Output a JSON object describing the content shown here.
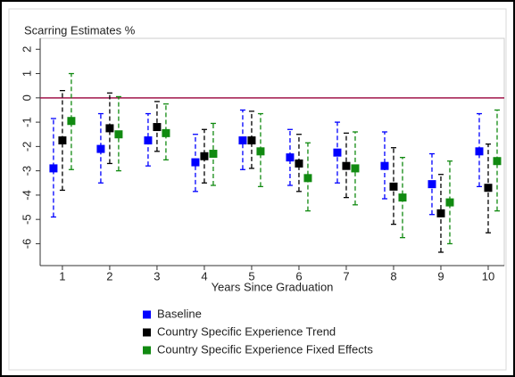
{
  "chart_data": {
    "type": "errorbar",
    "title": "Scarring Estimates %",
    "xlabel": "Years Since Graduation",
    "x": [
      1,
      2,
      3,
      4,
      5,
      6,
      7,
      8,
      9,
      10
    ],
    "xlim": [
      0.53,
      10.34
    ],
    "xticks": [
      1,
      2,
      3,
      4,
      5,
      6,
      7,
      8,
      9,
      10
    ],
    "ylim": [
      -6.9,
      2.45
    ],
    "yticks": [
      2,
      1,
      0,
      -1,
      -2,
      -3,
      -4,
      -5,
      -6
    ],
    "refline": 0,
    "refline_color": "#a0144a",
    "legend": "bottom",
    "series": [
      {
        "name": "Baseline",
        "color": "#0000ff",
        "values": [
          -2.9,
          -2.1,
          -1.75,
          -2.65,
          -1.75,
          -2.45,
          -2.25,
          -2.8,
          -3.55,
          -2.2
        ],
        "lower": [
          -4.9,
          -3.5,
          -2.8,
          -3.85,
          -2.95,
          -3.6,
          -3.5,
          -4.15,
          -4.8,
          -3.65
        ],
        "upper": [
          -0.85,
          -0.65,
          -0.65,
          -1.5,
          -0.5,
          -1.3,
          -1.0,
          -1.4,
          -2.3,
          -0.65
        ]
      },
      {
        "name": "Country Specific Experience Trend",
        "color": "#000000",
        "values": [
          -1.75,
          -1.25,
          -1.2,
          -2.4,
          -1.75,
          -2.7,
          -2.8,
          -3.65,
          -4.75,
          -3.7
        ],
        "lower": [
          -3.8,
          -2.7,
          -2.2,
          -3.5,
          -2.9,
          -3.85,
          -4.1,
          -5.2,
          -6.35,
          -5.55
        ],
        "upper": [
          0.3,
          0.2,
          -0.15,
          -1.3,
          -0.55,
          -1.5,
          -1.45,
          -2.05,
          -3.15,
          -1.9
        ]
      },
      {
        "name": "Country Specific Experience Fixed Effects",
        "color": "#118a11",
        "values": [
          -0.95,
          -1.5,
          -1.45,
          -2.3,
          -2.2,
          -3.3,
          -2.9,
          -4.1,
          -4.3,
          -2.6
        ],
        "lower": [
          -2.95,
          -3.0,
          -2.55,
          -3.6,
          -3.65,
          -4.65,
          -4.4,
          -5.75,
          -6.0,
          -4.65
        ],
        "upper": [
          1.0,
          0.05,
          -0.25,
          -1.05,
          -0.65,
          -1.85,
          -1.4,
          -2.45,
          -2.6,
          -0.5
        ]
      }
    ]
  }
}
